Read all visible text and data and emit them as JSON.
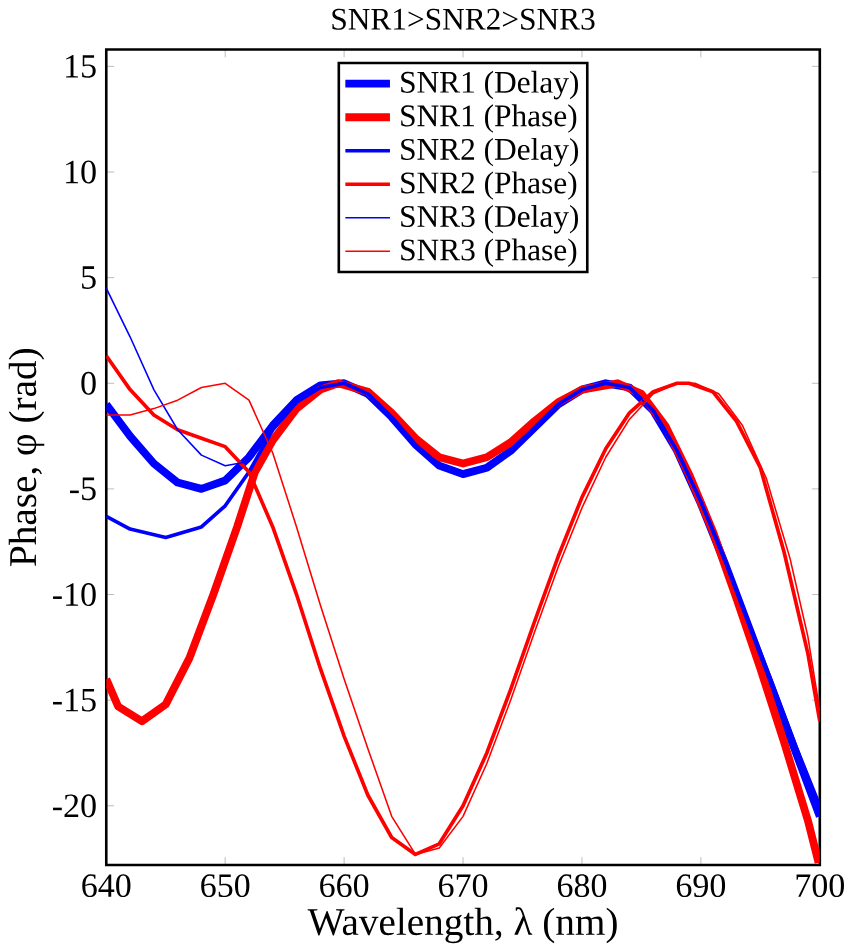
{
  "chart_data": {
    "type": "line",
    "title": "SNR1>SNR2>SNR3",
    "xlabel": "Wavelength, λ (nm)",
    "ylabel": "Phase, φ (rad)",
    "xlim": [
      640,
      700
    ],
    "ylim": [
      -22.8,
      15.8
    ],
    "xticks": [
      640,
      650,
      660,
      670,
      680,
      690,
      700
    ],
    "yticks": [
      -20,
      -15,
      -10,
      -5,
      0,
      5,
      10,
      15
    ],
    "grid": false,
    "legend": "top",
    "marker": "none",
    "line_style": "solid",
    "series": [
      {
        "name": "SNR1 (Delay)",
        "color": "#0000ff",
        "x": [
          640,
          642,
          644,
          646,
          648,
          650,
          652,
          654,
          656,
          658,
          660,
          662,
          664,
          666,
          668,
          670,
          672,
          674,
          676,
          678,
          680,
          682,
          684,
          686,
          688,
          690,
          692,
          694,
          696,
          698,
          700
        ],
        "values": [
          -1,
          -2.5,
          -3.8,
          -4.7,
          -5,
          -4.6,
          -3.5,
          -2,
          -0.8,
          -0.1,
          0,
          -0.5,
          -1.6,
          -2.9,
          -3.9,
          -4.3,
          -4,
          -3.2,
          -2.1,
          -1,
          -0.3,
          0,
          -0.2,
          -1.3,
          -3.2,
          -5.7,
          -8.5,
          -11.5,
          -14.5,
          -17.5,
          -20.5
        ]
      },
      {
        "name": "SNR1 (Phase)",
        "color": "#ff0000",
        "x": [
          640,
          641,
          643,
          645,
          647,
          649,
          651,
          652.5,
          654,
          656,
          658,
          659.5,
          662,
          664,
          666,
          668,
          670,
          672,
          674,
          676,
          678,
          680,
          683,
          685,
          687,
          689,
          691,
          693,
          695,
          697,
          699,
          699.9
        ],
        "values": [
          -14,
          -15.3,
          -16,
          -15.2,
          -13,
          -10,
          -6.8,
          -4.2,
          -2.7,
          -1.2,
          -0.3,
          0,
          -0.4,
          -1.4,
          -2.6,
          -3.5,
          -3.8,
          -3.5,
          -2.8,
          -1.8,
          -0.9,
          -0.3,
          0,
          -0.5,
          -2,
          -4.3,
          -7,
          -10.2,
          -13.5,
          -17,
          -20.7,
          -22.7
        ]
      },
      {
        "name": "SNR2 (Delay)",
        "color": "#0000ff",
        "x": [
          640,
          642,
          645,
          648,
          650,
          652,
          654,
          656,
          658,
          660,
          662,
          664,
          666,
          668,
          670,
          672,
          674,
          676,
          678,
          680,
          682,
          684,
          686,
          688,
          690,
          692,
          694,
          696,
          698,
          700
        ],
        "values": [
          -6.3,
          -6.9,
          -7.3,
          -6.8,
          -5.8,
          -4.2,
          -2.2,
          -0.9,
          -0.2,
          0,
          -0.5,
          -1.6,
          -2.9,
          -3.9,
          -4.3,
          -4,
          -3.2,
          -2.1,
          -1,
          -0.3,
          0,
          -0.2,
          -1.3,
          -3.2,
          -5.6,
          -8.3,
          -11.3,
          -14.2,
          -17.2,
          -20
        ]
      },
      {
        "name": "SNR2 (Phase)",
        "color": "#ff0000",
        "x": [
          640,
          642,
          644,
          646,
          648,
          650,
          652,
          654,
          656,
          658,
          660,
          662,
          664,
          666,
          668,
          670,
          672,
          674,
          676,
          678,
          680,
          682,
          684,
          686,
          688,
          689,
          691,
          693,
          695,
          697,
          699,
          700
        ],
        "values": [
          1.3,
          -0.3,
          -1.5,
          -2.2,
          -2.6,
          -3,
          -4.2,
          -6.8,
          -10,
          -13.5,
          -16.7,
          -19.5,
          -21.5,
          -22.3,
          -21.8,
          -20,
          -17.5,
          -14.5,
          -11.3,
          -8.2,
          -5.4,
          -3.1,
          -1.4,
          -0.4,
          0,
          0,
          -0.4,
          -1.8,
          -4,
          -8,
          -12.8,
          -16
        ]
      },
      {
        "name": "SNR3 (Delay)",
        "color": "#0000ff",
        "x": [
          640,
          642,
          644,
          646,
          648,
          650,
          652,
          654,
          656,
          658,
          660,
          662,
          664,
          666,
          668,
          670,
          672,
          674,
          676,
          678,
          680,
          682,
          684,
          686,
          688,
          690,
          692,
          694,
          696,
          698,
          700
        ],
        "values": [
          4.5,
          2.2,
          -0.3,
          -2.2,
          -3.4,
          -3.9,
          -3.7,
          -2.2,
          -0.9,
          -0.2,
          0,
          -0.5,
          -1.6,
          -2.9,
          -3.9,
          -4.3,
          -4,
          -3.2,
          -2.1,
          -1,
          -0.3,
          0,
          -0.2,
          -1.3,
          -3.2,
          -5.7,
          -8.5,
          -11.5,
          -14.5,
          -17.5,
          -20.5
        ]
      },
      {
        "name": "SNR3 (Phase)",
        "color": "#ff0000",
        "x": [
          640,
          642,
          644,
          646,
          648,
          650,
          652,
          654,
          656,
          658,
          660,
          662,
          664,
          666,
          668,
          670,
          672,
          674,
          676,
          678,
          680,
          682,
          684,
          686,
          688,
          689.5,
          691.5,
          693.5,
          695.5,
          697.5,
          699,
          700
        ],
        "values": [
          -1.5,
          -1.5,
          -1.2,
          -0.8,
          -0.2,
          0,
          -0.8,
          -3.3,
          -6.8,
          -10.5,
          -14,
          -17.3,
          -20.5,
          -22.3,
          -22,
          -20.5,
          -18,
          -15,
          -11.8,
          -8.7,
          -5.9,
          -3.5,
          -1.7,
          -0.5,
          0,
          0,
          -0.5,
          -2,
          -4.5,
          -8.3,
          -12,
          -15.5
        ]
      }
    ]
  }
}
